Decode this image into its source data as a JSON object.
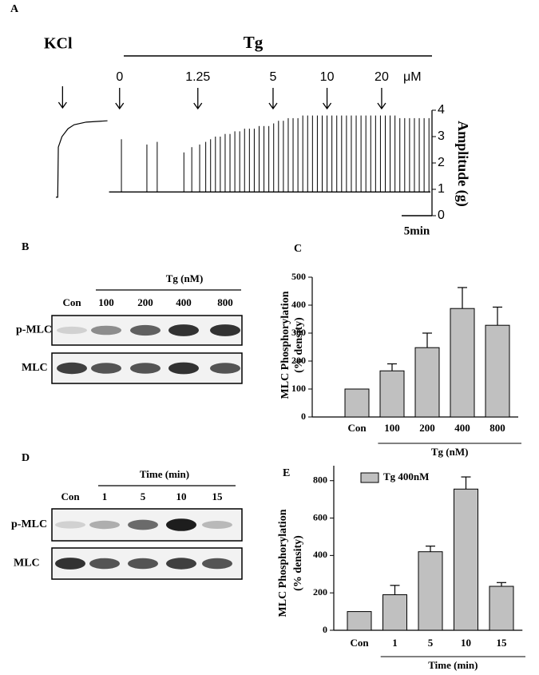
{
  "panel_labels": [
    "A",
    "B",
    "C",
    "D",
    "E"
  ],
  "chart_data": [
    {
      "type": "trace",
      "ylabel": "Amplitude (g)",
      "ylim": [
        0,
        4
      ],
      "yticks": [
        0,
        1,
        2,
        3,
        4
      ],
      "xlim": [
        0,
        62
      ],
      "treatment": "Tg",
      "unit": "μM",
      "kcl": {
        "label": "KCl",
        "arrow_x": 1.1,
        "x": [
          0,
          0.3,
          0.4,
          1,
          2,
          3,
          5,
          8.5
        ],
        "values": [
          0.7,
          0.7,
          2.6,
          3.0,
          3.3,
          3.45,
          3.55,
          3.6
        ]
      },
      "doses": [
        {
          "label": "0",
          "x": 10.5
        },
        {
          "label": "1.25",
          "x": 23.4
        },
        {
          "label": "5",
          "x": 35.8
        },
        {
          "label": "10",
          "x": 44.7
        },
        {
          "label": "20",
          "x": 53.7
        }
      ],
      "baseline": 0.9,
      "spikes": {
        "x": [
          10.8,
          15.0,
          16.7,
          21.1,
          22.4,
          23.7,
          24.7,
          25.5,
          26.3,
          27.1,
          27.9,
          28.7,
          29.5,
          30.3,
          31.1,
          31.9,
          32.7,
          33.5,
          34.3,
          35.1,
          35.9,
          36.7,
          37.5,
          38.3,
          39.1,
          39.9,
          40.7,
          41.5,
          42.3,
          43.1,
          43.9,
          44.7,
          45.5,
          46.3,
          47.1,
          47.9,
          48.7,
          49.5,
          50.3,
          51.1,
          51.9,
          52.7,
          53.5,
          54.3,
          55.1,
          55.9,
          56.7,
          57.5,
          58.3,
          59.1,
          59.9,
          60.7,
          61.5
        ],
        "values": [
          2.9,
          2.7,
          2.8,
          2.4,
          2.6,
          2.7,
          2.8,
          2.9,
          3.0,
          3.0,
          3.1,
          3.1,
          3.2,
          3.2,
          3.3,
          3.3,
          3.3,
          3.4,
          3.4,
          3.4,
          3.5,
          3.6,
          3.6,
          3.7,
          3.7,
          3.7,
          3.8,
          3.8,
          3.8,
          3.8,
          3.8,
          3.8,
          3.8,
          3.8,
          3.8,
          3.8,
          3.8,
          3.8,
          3.8,
          3.8,
          3.8,
          3.8,
          3.8,
          3.8,
          3.8,
          3.8,
          3.7,
          3.7,
          3.7,
          3.7,
          3.7,
          3.7,
          3.7
        ]
      },
      "scale_bar": {
        "label": "5min",
        "value": 5
      }
    },
    {
      "type": "bar",
      "ylabel": [
        "MLC Phosphorylation",
        "(% density)"
      ],
      "categories": [
        "Con",
        "100",
        "200",
        "400",
        "800"
      ],
      "values": [
        100,
        165,
        248,
        388,
        328
      ],
      "errors": [
        null,
        25,
        52,
        75,
        65
      ],
      "color": "#c0c0c0",
      "ylim": [
        0,
        500
      ],
      "yticks": [
        0,
        100,
        200,
        300,
        400,
        500
      ],
      "group_label": "Tg (nM)"
    },
    {
      "type": "bar",
      "ylabel": [
        "MLC Phosphorylation",
        "(% density)"
      ],
      "categories": [
        "Con",
        "1",
        "5",
        "10",
        "15"
      ],
      "series": [
        {
          "name": "Tg 400nM",
          "color": "#c0c0c0",
          "values": [
            100,
            190,
            420,
            755,
            235
          ],
          "errors": [
            null,
            50,
            30,
            65,
            20
          ]
        }
      ],
      "ylim": [
        0,
        880
      ],
      "yticks": [
        0,
        200,
        400,
        600,
        800
      ],
      "group_label": "Time (min)"
    }
  ],
  "blots": [
    {
      "header": "Tg (nM)",
      "lanes": [
        "Con",
        "100",
        "200",
        "400",
        "800"
      ],
      "rows": [
        "p-MLC",
        "MLC"
      ]
    },
    {
      "header": "Time (min)",
      "lanes": [
        "Con",
        "1",
        "5",
        "10",
        "15"
      ],
      "rows": [
        "p-MLC",
        "MLC"
      ]
    }
  ]
}
